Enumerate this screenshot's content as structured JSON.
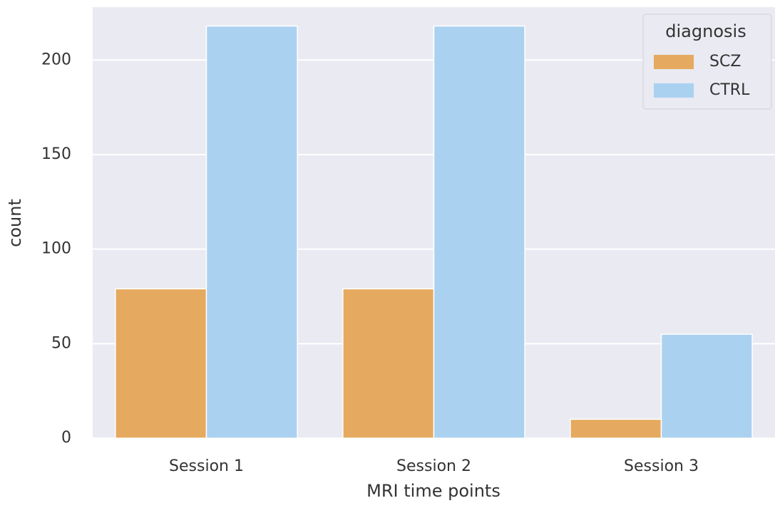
{
  "chart_data": {
    "type": "grouped_bar",
    "x_label": "MRI time points",
    "y_label": "count",
    "categories": [
      "Session 1",
      "Session 2",
      "Session 3"
    ],
    "series": [
      {
        "name": "SCZ",
        "color": "#e5a95f",
        "values": [
          79,
          79,
          10
        ]
      },
      {
        "name": "CTRL",
        "color": "#abd1f0",
        "values": [
          218,
          218,
          55
        ]
      }
    ],
    "legend_title": "diagnosis",
    "legend_position": "upper right",
    "ylim": [
      0,
      228
    ],
    "yticks": [
      0,
      50,
      100,
      150,
      200
    ],
    "grid": true
  }
}
